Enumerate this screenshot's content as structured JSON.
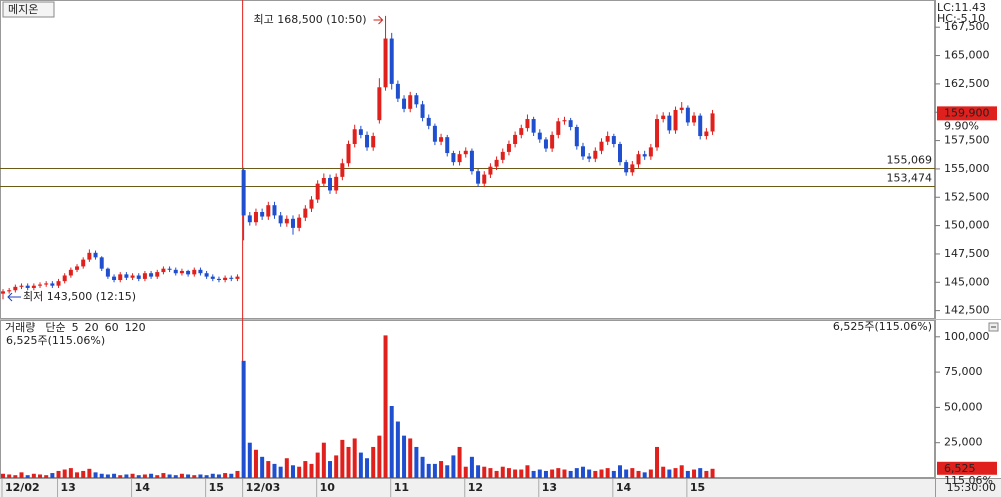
{
  "ticker": "메지온",
  "clock": "15:30:00",
  "chart_data": [
    {
      "type": "candlestick",
      "categories": [
        "12/02",
        null,
        null,
        null,
        null,
        null,
        null,
        null,
        null,
        "13",
        null,
        null,
        null,
        null,
        null,
        null,
        null,
        null,
        null,
        null,
        null,
        "14",
        null,
        null,
        null,
        null,
        null,
        null,
        null,
        null,
        null,
        null,
        null,
        "15",
        null,
        null,
        null,
        null,
        null,
        "12/03",
        null,
        null,
        null,
        null,
        null,
        null,
        null,
        null,
        null,
        null,
        null,
        "10",
        null,
        null,
        null,
        null,
        null,
        null,
        null,
        null,
        null,
        null,
        null,
        "11",
        null,
        null,
        null,
        null,
        null,
        null,
        null,
        null,
        null,
        null,
        null,
        "12",
        null,
        null,
        null,
        null,
        null,
        null,
        null,
        null,
        null,
        null,
        null,
        "13",
        null,
        null,
        null,
        null,
        null,
        null,
        null,
        null,
        null,
        null,
        null,
        "14",
        null,
        null,
        null,
        null,
        null,
        null,
        null,
        null,
        null,
        null,
        null,
        "15",
        null,
        null,
        null,
        null
      ],
      "open": [
        144000,
        144200,
        144300,
        144600,
        144700,
        144500,
        144700,
        144800,
        144900,
        144700,
        145100,
        145600,
        146100,
        146400,
        147000,
        147600,
        147200,
        146200,
        145500,
        145200,
        145700,
        145400,
        145600,
        145300,
        145800,
        145500,
        145900,
        146200,
        146100,
        145800,
        146000,
        145700,
        146100,
        145800,
        145500,
        145300,
        145200,
        145400,
        145300,
        154900,
        150900,
        150300,
        151200,
        150800,
        151800,
        150900,
        150200,
        150600,
        149800,
        150700,
        151500,
        152300,
        153700,
        154200,
        153100,
        154300,
        155500,
        157200,
        158500,
        158000,
        156900,
        159300,
        162200,
        166500,
        162500,
        161200,
        160300,
        161500,
        160700,
        159500,
        158800,
        157400,
        157800,
        156400,
        155600,
        156300,
        156600,
        154800,
        153700,
        154500,
        155200,
        155800,
        156500,
        157200,
        158000,
        158600,
        159400,
        158200,
        157600,
        156800,
        158000,
        159200,
        159300,
        158700,
        157000,
        156100,
        155900,
        156600,
        157400,
        157900,
        157200,
        155600,
        154700,
        155400,
        156300,
        156100,
        156900,
        159400,
        159700,
        158400,
        160200,
        160400,
        159100,
        159700,
        157900,
        158300
      ],
      "high": [
        144400,
        144500,
        144800,
        144900,
        144900,
        144900,
        145000,
        145100,
        145100,
        145300,
        145800,
        146300,
        146600,
        147200,
        147900,
        147800,
        147300,
        146300,
        145700,
        145900,
        145900,
        145800,
        145800,
        146000,
        146000,
        146100,
        146400,
        146400,
        146300,
        146200,
        146100,
        146300,
        146300,
        146000,
        145700,
        145500,
        145600,
        145600,
        145700,
        155100,
        151200,
        151500,
        151500,
        152100,
        152100,
        151200,
        150900,
        150900,
        151000,
        151800,
        152600,
        154000,
        154600,
        154500,
        154600,
        155900,
        157500,
        158900,
        158800,
        158300,
        158200,
        163000,
        168500,
        167000,
        162800,
        161500,
        161800,
        161700,
        161000,
        159800,
        159000,
        158100,
        158000,
        156600,
        156600,
        156900,
        156800,
        155000,
        154800,
        155500,
        156100,
        156800,
        157500,
        158300,
        158900,
        159800,
        159600,
        158500,
        157800,
        158300,
        159500,
        159600,
        159500,
        158900,
        157300,
        156400,
        156900,
        157700,
        158300,
        158100,
        157400,
        155800,
        155700,
        156600,
        156600,
        157200,
        159800,
        160000,
        160000,
        160500,
        160900,
        160600,
        160000,
        159900,
        158600,
        160200
      ],
      "low": [
        143500,
        144000,
        144100,
        144400,
        144300,
        144300,
        144500,
        144600,
        144500,
        144500,
        144900,
        145400,
        145900,
        146200,
        146800,
        147000,
        146000,
        145300,
        145000,
        145000,
        145200,
        145200,
        145100,
        145100,
        145300,
        145300,
        145700,
        145900,
        145600,
        145600,
        145500,
        145500,
        145600,
        145300,
        145100,
        145000,
        145000,
        145100,
        145100,
        148700,
        150000,
        150000,
        150500,
        150500,
        150600,
        149900,
        149900,
        149200,
        149500,
        150400,
        151200,
        152000,
        153400,
        152800,
        152800,
        154000,
        155200,
        156900,
        157700,
        156600,
        156600,
        159000,
        161900,
        162000,
        160900,
        160000,
        160000,
        160400,
        159200,
        158500,
        157100,
        157100,
        156100,
        155300,
        155300,
        156000,
        154500,
        153400,
        153400,
        154200,
        154900,
        155500,
        156200,
        156900,
        157700,
        158300,
        157900,
        157300,
        156500,
        156500,
        157700,
        158900,
        158400,
        156700,
        155800,
        155600,
        155600,
        156300,
        157100,
        156900,
        155300,
        154400,
        154400,
        155100,
        155800,
        155800,
        156600,
        159100,
        158100,
        158100,
        159900,
        158800,
        158800,
        157600,
        157600,
        158000
      ],
      "close": [
        144200,
        144300,
        144600,
        144700,
        144500,
        144700,
        144800,
        144900,
        144700,
        145100,
        145600,
        146100,
        146400,
        147000,
        147600,
        147200,
        146200,
        145500,
        145200,
        145700,
        145400,
        145600,
        145300,
        145800,
        145500,
        145900,
        146200,
        146100,
        145800,
        146000,
        145700,
        146100,
        145800,
        145500,
        145300,
        145200,
        145400,
        145300,
        145500,
        150900,
        150300,
        151200,
        150800,
        151800,
        150900,
        150200,
        150600,
        149800,
        150700,
        151500,
        152300,
        153700,
        154200,
        153100,
        154300,
        155500,
        157200,
        158500,
        158000,
        156900,
        157900,
        162200,
        166500,
        162500,
        161200,
        160300,
        161500,
        160700,
        159500,
        158800,
        157400,
        157800,
        156400,
        155600,
        156300,
        156600,
        154800,
        153700,
        154500,
        155200,
        155800,
        156500,
        157200,
        158000,
        158600,
        159400,
        158200,
        157600,
        156800,
        158000,
        159200,
        159300,
        158700,
        157000,
        156100,
        155900,
        156600,
        157400,
        157900,
        157200,
        155600,
        154700,
        155400,
        156300,
        156100,
        156900,
        159400,
        159700,
        158400,
        160200,
        160400,
        159100,
        159700,
        157900,
        158300,
        159900
      ],
      "up_color": "#e0201c",
      "down_color": "#1f4fcf",
      "ylim": [
        141850,
        169900
      ],
      "yticks": [
        {
          "value": 142500,
          "label": "142,500"
        },
        {
          "value": 145000,
          "label": "145,000"
        },
        {
          "value": 147500,
          "label": "147,500"
        },
        {
          "value": 150000,
          "label": "150,000"
        },
        {
          "value": 152500,
          "label": "152,500"
        },
        {
          "value": 155000,
          "label": "155,000"
        },
        {
          "value": 157500,
          "label": "157,500"
        },
        {
          "value": 160000,
          "label": "160,000"
        },
        {
          "value": 162500,
          "label": "162,500"
        },
        {
          "value": 165000,
          "label": "165,000"
        },
        {
          "value": 167500,
          "label": "167,500"
        }
      ],
      "hlines": [
        {
          "value": 155069,
          "label": "155,069"
        },
        {
          "value": 153474,
          "label": "153,474"
        }
      ],
      "annotations": [
        {
          "text": "최고 168,500 (10:50)",
          "color": "#d0201c"
        },
        {
          "text": "최저 143,500 (12:15)",
          "color": "#1f3fbf"
        }
      ],
      "info": [
        {
          "text": "LC:11.43",
          "color": "#e0201c"
        },
        {
          "text": "HC:-5.10",
          "color": "#1f4fcf"
        }
      ],
      "last": {
        "value": 159900,
        "label": "159,900"
      },
      "change": "9.90%"
    },
    {
      "type": "bar",
      "values": [
        3000,
        2500,
        2000,
        4000,
        2000,
        3000,
        2500,
        2000,
        3500,
        5000,
        6000,
        7000,
        4000,
        5000,
        6500,
        4000,
        3000,
        2500,
        3000,
        2000,
        2500,
        3000,
        2000,
        2500,
        3000,
        2000,
        3500,
        2500,
        2000,
        3000,
        2500,
        2000,
        2500,
        2000,
        3000,
        2500,
        3500,
        3000,
        5000,
        83000,
        25000,
        20000,
        15000,
        12000,
        10000,
        8000,
        14000,
        9000,
        8000,
        12000,
        10000,
        18000,
        25000,
        12000,
        16000,
        27000,
        22000,
        28000,
        18000,
        14000,
        22000,
        30000,
        101000,
        51000,
        40000,
        30000,
        28000,
        22000,
        15000,
        10000,
        10000,
        12000,
        9000,
        16000,
        22000,
        8000,
        15000,
        9000,
        8000,
        7000,
        5000,
        8000,
        7000,
        6000,
        6000,
        9000,
        5000,
        6000,
        5000,
        6000,
        7000,
        6000,
        5000,
        7000,
        8000,
        6000,
        5000,
        6000,
        7000,
        5000,
        9000,
        6000,
        7000,
        5000,
        4000,
        6000,
        22000,
        8000,
        6000,
        7000,
        9000,
        5000,
        6000,
        7000,
        5000,
        6525
      ],
      "ylim": [
        0,
        111900
      ],
      "yticks": [
        {
          "value": 25000,
          "label": "25,000"
        },
        {
          "value": 50000,
          "label": "50,000"
        },
        {
          "value": 75000,
          "label": "75,000"
        },
        {
          "value": 100000,
          "label": "100,000"
        }
      ],
      "legend": [
        {
          "text": "거래량",
          "color": "#2a8a8a"
        },
        {
          "text": "단순",
          "color": "#b020b0"
        },
        {
          "text": "5",
          "color": "#b020b0"
        },
        {
          "text": "20",
          "color": "#c89a00"
        },
        {
          "text": "60",
          "color": "#2a9a2a"
        },
        {
          "text": "120",
          "color": "#888888"
        }
      ],
      "info_label": "6,525주(115.06%)",
      "last": {
        "value": 6525,
        "label": "6,525"
      },
      "ratio": "115.06%"
    }
  ]
}
